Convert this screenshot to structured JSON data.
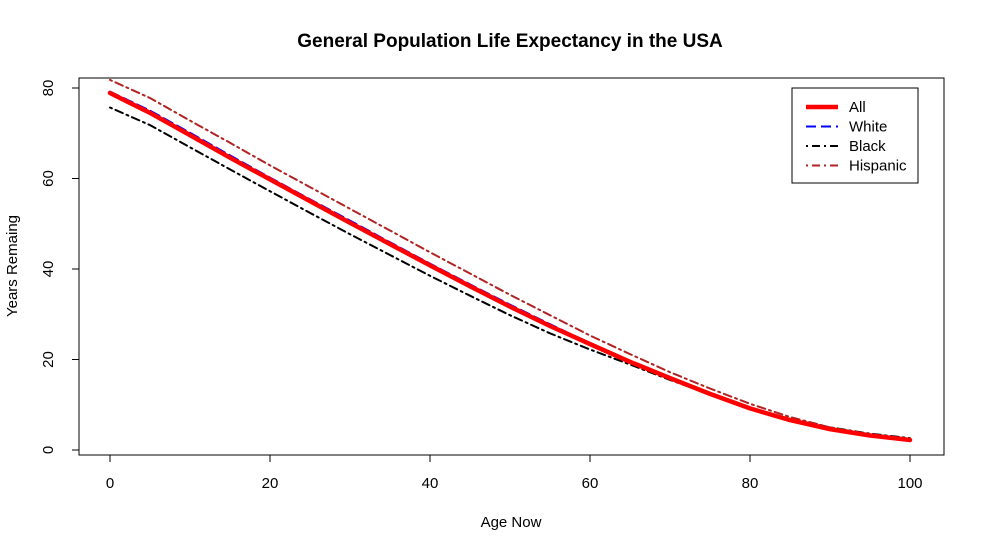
{
  "chart_data": {
    "type": "line",
    "title": "General Population Life Expectancy in the USA",
    "xlabel": "Age Now",
    "ylabel": "Years Remaing",
    "xlim": [
      0,
      100
    ],
    "ylim": [
      0,
      80
    ],
    "x_ticks": [
      0,
      20,
      40,
      60,
      80,
      100
    ],
    "y_ticks": [
      0,
      20,
      40,
      60,
      80
    ],
    "grid": false,
    "legend_position": "top-right",
    "x": [
      0,
      5,
      10,
      15,
      20,
      25,
      30,
      35,
      40,
      45,
      50,
      55,
      60,
      65,
      70,
      75,
      80,
      85,
      90,
      95,
      100
    ],
    "series": [
      {
        "name": "All",
        "color": "#ff0000",
        "dash": "solid",
        "width": "thick",
        "values": [
          78.9,
          74.5,
          69.6,
          64.6,
          59.8,
          55.0,
          50.2,
          45.5,
          40.8,
          36.2,
          31.7,
          27.4,
          23.4,
          19.5,
          15.9,
          12.4,
          9.2,
          6.6,
          4.6,
          3.2,
          2.2
        ]
      },
      {
        "name": "White",
        "color": "#0000ff",
        "dash": "dashed",
        "width": "normal",
        "values": [
          79.2,
          75.0,
          70.1,
          65.1,
          60.2,
          55.4,
          50.7,
          45.9,
          41.2,
          36.6,
          32.1,
          27.8,
          23.6,
          19.7,
          16.0,
          12.5,
          9.3,
          6.6,
          4.6,
          3.2,
          2.3
        ]
      },
      {
        "name": "Black",
        "color": "#000000",
        "dash": "dot-dash",
        "width": "normal",
        "values": [
          75.7,
          71.8,
          66.9,
          62.0,
          57.2,
          52.4,
          47.7,
          43.1,
          38.5,
          34.1,
          29.8,
          25.8,
          22.2,
          18.9,
          15.5,
          12.3,
          9.3,
          6.9,
          5.0,
          3.6,
          2.6
        ]
      },
      {
        "name": "Hispanic",
        "color": "#b22222",
        "dash": "dot-dash",
        "width": "normal",
        "values": [
          81.8,
          77.8,
          72.8,
          67.9,
          62.9,
          58.1,
          53.3,
          48.5,
          43.7,
          39.0,
          34.3,
          29.8,
          25.3,
          21.2,
          17.2,
          13.6,
          10.2,
          7.3,
          5.0,
          3.5,
          2.4
        ]
      }
    ]
  }
}
